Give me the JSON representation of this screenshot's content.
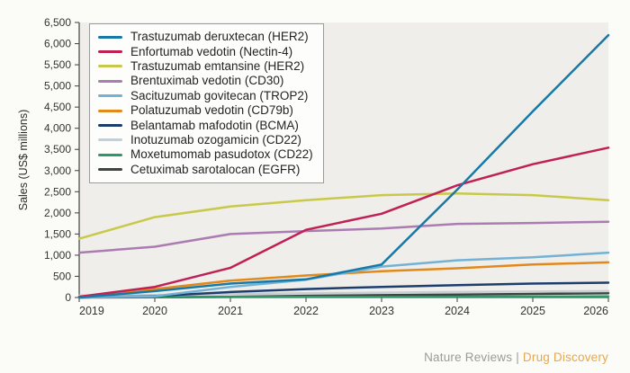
{
  "footer": {
    "journal": "Nature Reviews",
    "separator": "|",
    "title": "Drug Discovery"
  },
  "chart_data": {
    "type": "line",
    "title": "",
    "xlabel": "",
    "ylabel": "Sales (US$ millions)",
    "x": [
      2019,
      2020,
      2021,
      2022,
      2023,
      2024,
      2025,
      2026
    ],
    "ylim": [
      0,
      6500
    ],
    "yticks": [
      0,
      500,
      1000,
      1500,
      2000,
      2500,
      3000,
      3500,
      4000,
      4500,
      5000,
      5500,
      6000,
      6500
    ],
    "grid": false,
    "legend_position": "top-left",
    "plot_bg": "#efeeea",
    "axis_color": "#4d4d4d",
    "tick_label_color": "#333333",
    "series": [
      {
        "name": "Trastuzumab deruxtecan (HER2)",
        "color": "#1679a8",
        "values": [
          0,
          150,
          330,
          430,
          780,
          2550,
          4400,
          6200
        ]
      },
      {
        "name": "Enfortumab vedotin (Nectin-4)",
        "color": "#bf2056",
        "values": [
          20,
          250,
          700,
          1600,
          1980,
          2650,
          3150,
          3540
        ]
      },
      {
        "name": "Trastuzumab emtansine (HER2)",
        "color": "#c8c94a",
        "values": [
          1390,
          1900,
          2150,
          2300,
          2420,
          2460,
          2420,
          2300
        ]
      },
      {
        "name": "Brentuximab vedotin (CD30)",
        "color": "#ab7cb2",
        "values": [
          1060,
          1200,
          1500,
          1570,
          1630,
          1740,
          1760,
          1790
        ]
      },
      {
        "name": "Sacituzumab govitecan (TROP2)",
        "color": "#72b2d5",
        "values": [
          0,
          30,
          250,
          420,
          730,
          880,
          950,
          1060
        ]
      },
      {
        "name": "Polatuzumab vedotin (CD79b)",
        "color": "#e2891b",
        "values": [
          10,
          200,
          400,
          520,
          620,
          690,
          780,
          830
        ]
      },
      {
        "name": "Belantamab mafodotin (BCMA)",
        "color": "#1d3d6f",
        "values": [
          0,
          35,
          130,
          200,
          250,
          290,
          330,
          350
        ]
      },
      {
        "name": "Inotuzumab ozogamicin (CD22)",
        "color": "#c6d0d4",
        "values": [
          45,
          60,
          80,
          100,
          115,
          130,
          140,
          150
        ]
      },
      {
        "name": "Moxetumomab pasudotox (CD22)",
        "color": "#2b9a68",
        "values": [
          8,
          10,
          13,
          15,
          18,
          20,
          22,
          25
        ]
      },
      {
        "name": "Cetuximab sarotalocan (EGFR)",
        "color": "#3d4442",
        "values": [
          0,
          5,
          15,
          40,
          55,
          70,
          85,
          100
        ]
      }
    ]
  }
}
